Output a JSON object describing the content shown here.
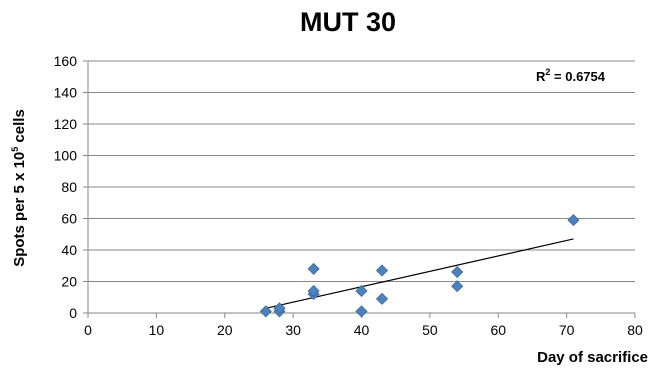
{
  "chart_data": {
    "type": "scatter",
    "title": "MUT 30",
    "xlabel": "Day of sacrifice",
    "ylabel": {
      "prefix": "Spots per 5 x 10",
      "superscript": "5",
      "suffix": " cells"
    },
    "xlim": [
      0,
      80
    ],
    "ylim": [
      0,
      160
    ],
    "xticks": [
      0,
      10,
      20,
      30,
      40,
      50,
      60,
      70,
      80
    ],
    "yticks": [
      0,
      20,
      40,
      60,
      80,
      100,
      120,
      140,
      160
    ],
    "grid": "horizontal",
    "legend": "none",
    "marker": "diamond",
    "marker_color": "#4f81bd",
    "trendline_color": "#000000",
    "annotation": {
      "prefix": "R",
      "superscript": "2",
      "suffix": " = 0.6754"
    },
    "trendline": {
      "x": [
        26,
        71
      ],
      "y": [
        3,
        47
      ]
    },
    "points": [
      {
        "x": 26,
        "y": 1
      },
      {
        "x": 28,
        "y": 1
      },
      {
        "x": 28,
        "y": 3
      },
      {
        "x": 33,
        "y": 12
      },
      {
        "x": 33,
        "y": 14
      },
      {
        "x": 33,
        "y": 28
      },
      {
        "x": 40,
        "y": 1
      },
      {
        "x": 40,
        "y": 14
      },
      {
        "x": 43,
        "y": 9
      },
      {
        "x": 43,
        "y": 27
      },
      {
        "x": 54,
        "y": 17
      },
      {
        "x": 54,
        "y": 26
      },
      {
        "x": 71,
        "y": 59
      }
    ]
  }
}
